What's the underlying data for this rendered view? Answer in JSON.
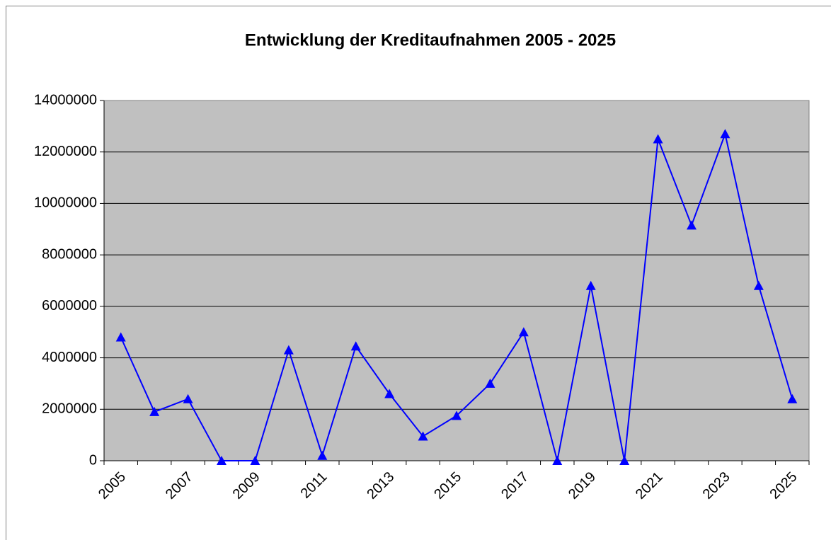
{
  "chart_data": {
    "type": "line",
    "title": "Entwicklung der Kreditaufnahmen 2005 - 2025",
    "categories": [
      "2005",
      null,
      "2007",
      null,
      "2009",
      null,
      "2011",
      null,
      "2013",
      null,
      "2015",
      null,
      "2017",
      null,
      "2019",
      null,
      "2021",
      null,
      "2023",
      null,
      "2025"
    ],
    "series": [
      {
        "name": "Kreditaufnahmen",
        "color": "#0000ff",
        "values": [
          4800000,
          1900000,
          2400000,
          0,
          0,
          4300000,
          200000,
          4450000,
          2600000,
          950000,
          1750000,
          3000000,
          5000000,
          0,
          6800000,
          0,
          12500000,
          9150000,
          12700000,
          6800000,
          2400000
        ]
      }
    ],
    "ylim": [
      0,
      14000000
    ],
    "yticks": [
      0,
      2000000,
      4000000,
      6000000,
      8000000,
      10000000,
      12000000,
      14000000
    ],
    "grid": true,
    "plot_background": "#c0c0c0",
    "marker": "triangle"
  }
}
